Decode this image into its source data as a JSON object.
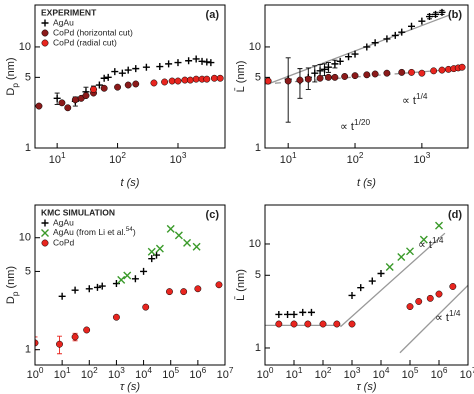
{
  "chart_data": [
    {
      "type": "scatter",
      "panel_label": "(a)",
      "log_x": true,
      "log_y": true,
      "xlabel": "t (s)",
      "ylabel": "D_{p} (nm)",
      "xlim": [
        4.3,
        6000
      ],
      "ylim": [
        1,
        26
      ],
      "xticks": [
        {
          "value": 10,
          "label": "10^{1}"
        },
        {
          "value": 100,
          "label": "10^{2}"
        },
        {
          "value": 1000,
          "label": "10^{3}"
        }
      ],
      "yticks": [
        1,
        5,
        10
      ],
      "legend": "upper left",
      "legend_title": "EXPERIMENT",
      "series": [
        {
          "name": "AgAu",
          "color": "#000000",
          "marker": "plus",
          "x": [
            10,
            20,
            30,
            40,
            50,
            60,
            70,
            90,
            120,
            150,
            200,
            300,
            500,
            700,
            1000,
            1500,
            2000,
            2500,
            3000,
            3500
          ],
          "values": [
            3.1,
            2.9,
            3.6,
            3.8,
            4.2,
            4.9,
            5.0,
            5.7,
            5.5,
            5.9,
            6.1,
            6.3,
            6.4,
            6.8,
            7.0,
            7.3,
            7.6,
            7.2,
            7.1,
            7.0
          ],
          "errors": [
            0.4,
            0.3,
            0.4,
            0.3,
            null,
            null,
            null,
            null,
            null,
            null,
            null,
            null,
            null,
            null,
            null,
            null,
            null,
            null,
            null,
            null
          ]
        },
        {
          "name": "CoPd (horizontal cut)",
          "color": "#8b1a1a",
          "marker": "circle",
          "x": [
            5,
            12,
            15,
            20,
            25,
            30,
            40,
            60,
            100,
            150,
            200
          ],
          "values": [
            2.6,
            2.8,
            2.5,
            3.0,
            3.1,
            3.3,
            3.5,
            3.9,
            4.0,
            4.2,
            4.3
          ]
        },
        {
          "name": "CoPd (radial cut)",
          "color": "#e8251f",
          "marker": "circle",
          "x": [
            40,
            400,
            600,
            800,
            1000,
            1300,
            1600,
            2000,
            2500,
            3000,
            4000,
            5000
          ],
          "values": [
            3.8,
            4.4,
            4.5,
            4.6,
            4.6,
            4.7,
            4.7,
            4.8,
            4.8,
            4.8,
            4.9,
            4.9
          ]
        }
      ]
    },
    {
      "type": "scatter",
      "panel_label": "(b)",
      "log_x": true,
      "log_y": true,
      "xlabel": "t (s)",
      "ylabel": "L̄ (nm)",
      "xlim": [
        4.5,
        4900
      ],
      "ylim": [
        1,
        26
      ],
      "xticks": [
        {
          "value": 10,
          "label": "10^{1}"
        },
        {
          "value": 100,
          "label": "10^{2}"
        },
        {
          "value": 1000,
          "label": "10^{3}"
        }
      ],
      "yticks": [
        1,
        5,
        10
      ],
      "series": [
        {
          "color": "#000000",
          "marker": "plus",
          "x": [
            10,
            15,
            20,
            25,
            30,
            35,
            40,
            50,
            60,
            80,
            100,
            150,
            200,
            300,
            400,
            500,
            700,
            1000,
            1300,
            1600,
            2000
          ],
          "values": [
            4.8,
            4.6,
            5.0,
            5.5,
            5.8,
            6.0,
            6.3,
            6.8,
            7.2,
            8.0,
            8.5,
            10,
            11,
            12,
            13,
            14,
            16,
            18,
            20,
            21,
            22
          ],
          "errors": [
            3.0,
            1.5,
            1.2,
            1.0,
            0.9,
            0.8,
            0.7,
            0.6,
            null,
            null,
            null,
            null,
            null,
            null,
            null,
            null,
            null,
            null,
            1.0,
            1.0,
            1.0
          ]
        },
        {
          "color": "#8b1a1a",
          "marker": "circle",
          "x": [
            5,
            10,
            15,
            20,
            30,
            40,
            50,
            70,
            100,
            150,
            200,
            300,
            500
          ],
          "values": [
            4.6,
            4.6,
            4.7,
            4.8,
            4.9,
            5.0,
            5.0,
            5.1,
            5.2,
            5.3,
            5.4,
            5.5,
            5.6
          ]
        },
        {
          "color": "#e8251f",
          "marker": "circle",
          "x": [
            5,
            700,
            1000,
            1500,
            2000,
            2500,
            3000,
            3500,
            4000
          ],
          "values": [
            4.6,
            5.6,
            5.5,
            5.8,
            5.9,
            6.0,
            6.1,
            6.2,
            6.3
          ]
        }
      ],
      "lines": [
        {
          "color": "#999999",
          "dashed": false,
          "x": [
            5,
            2500
          ],
          "values": [
            4.3,
            20.5
          ]
        },
        {
          "color": "#999999",
          "dashed": true,
          "x": [
            4.5,
            3000
          ],
          "values": [
            4.3,
            6.0
          ]
        }
      ],
      "annotations": [
        "∝ t^{1/4}",
        "∝ t^{1/20}"
      ]
    },
    {
      "type": "scatter",
      "panel_label": "(c)",
      "log_x": true,
      "log_y": true,
      "xlabel": "τ (s)",
      "ylabel": "D_{p} (nm)",
      "xlim": [
        1,
        10000000
      ],
      "ylim": [
        0.73,
        19.6
      ],
      "xticks": [
        {
          "value": 1,
          "label": "10^{0}"
        },
        {
          "value": 10,
          "label": "10^{1}"
        },
        {
          "value": 100,
          "label": "10^{2}"
        },
        {
          "value": 1000,
          "label": "10^{3}"
        },
        {
          "value": 10000,
          "label": "10^{4}"
        },
        {
          "value": 100000,
          "label": "10^{5}"
        },
        {
          "value": 1000000,
          "label": "10^{6}"
        },
        {
          "value": 10000000,
          "label": "10^{7}"
        }
      ],
      "yticks": [
        1,
        5,
        10
      ],
      "legend": "upper left",
      "legend_title": "KMC SIMULATION",
      "series": [
        {
          "name": "AgAu",
          "color": "#000000",
          "marker": "plus",
          "x": [
            10,
            30,
            100,
            200,
            300,
            1000,
            5000,
            10000,
            20000,
            30000
          ],
          "values": [
            3.0,
            3.4,
            3.5,
            3.6,
            3.7,
            3.9,
            4.3,
            5.0,
            6.5,
            7.0
          ]
        },
        {
          "name": "AgAu (from Li et al.^{54})",
          "color": "#3a9a2a",
          "marker": "x",
          "x": [
            1500,
            2500,
            20000,
            40000,
            100000,
            200000,
            400000,
            900000
          ],
          "values": [
            4.2,
            4.6,
            7.5,
            8.0,
            12,
            10.5,
            9.0,
            8.3
          ]
        },
        {
          "name": "CoPd",
          "color": "#e8251f",
          "marker": "circle",
          "x": [
            1,
            8,
            30,
            80,
            1000,
            12000,
            90000,
            300000,
            1000000,
            6000000
          ],
          "values": [
            1.15,
            1.12,
            1.3,
            1.5,
            1.95,
            2.4,
            3.3,
            3.3,
            3.5,
            3.8
          ],
          "errors": [
            0.15,
            0.2,
            0.1,
            null,
            null,
            null,
            null,
            null,
            null,
            null
          ]
        }
      ]
    },
    {
      "type": "scatter",
      "panel_label": "(d)",
      "log_x": true,
      "log_y": true,
      "xlabel": "τ (s)",
      "ylabel": "L̄ (nm)",
      "xlim": [
        1,
        10000000
      ],
      "ylim": [
        0.686,
        23.7
      ],
      "xticks": [
        {
          "value": 1,
          "label": "10^{0}"
        },
        {
          "value": 10,
          "label": "10^{1}"
        },
        {
          "value": 100,
          "label": "10^{2}"
        },
        {
          "value": 1000,
          "label": "10^{3}"
        },
        {
          "value": 10000,
          "label": "10^{4}"
        },
        {
          "value": 100000,
          "label": "10^{5}"
        },
        {
          "value": 1000000,
          "label": "10^{6}"
        },
        {
          "value": 10000000,
          "label": "10^{7}"
        }
      ],
      "yticks": [
        1,
        5,
        10
      ],
      "series": [
        {
          "color": "#000000",
          "marker": "plus",
          "x": [
            3,
            6,
            10,
            20,
            40,
            1000,
            2000,
            5000,
            10000
          ],
          "values": [
            2.1,
            2.1,
            2.1,
            2.2,
            2.2,
            3.2,
            3.8,
            4.4,
            5.2
          ]
        },
        {
          "color": "#3a9a2a",
          "marker": "x",
          "x": [
            20000,
            50000,
            100000,
            300000,
            1000000
          ],
          "values": [
            6.0,
            7.5,
            8.5,
            11,
            15
          ]
        },
        {
          "color": "#e8251f",
          "marker": "circle",
          "x": [
            3,
            10,
            30,
            100,
            300,
            1000,
            100000,
            200000,
            500000,
            1000000,
            3000000
          ],
          "values": [
            1.7,
            1.7,
            1.7,
            1.7,
            1.7,
            1.7,
            2.5,
            2.8,
            3.0,
            3.3,
            3.9
          ]
        }
      ],
      "lines": [
        {
          "color": "#999999",
          "dashed": false,
          "x": [
            1,
            400
          ],
          "values": [
            1.65,
            1.65
          ]
        },
        {
          "color": "#999999",
          "dashed": false,
          "x": [
            400,
            1600000
          ],
          "values": [
            1.6,
            12.7
          ]
        },
        {
          "color": "#999999",
          "dashed": false,
          "x": [
            45000,
            10000000
          ],
          "values": [
            0.9,
            4.0
          ]
        }
      ],
      "annotations": [
        "∝ t^{1/4}",
        "∝ t^{1/4}"
      ]
    }
  ]
}
